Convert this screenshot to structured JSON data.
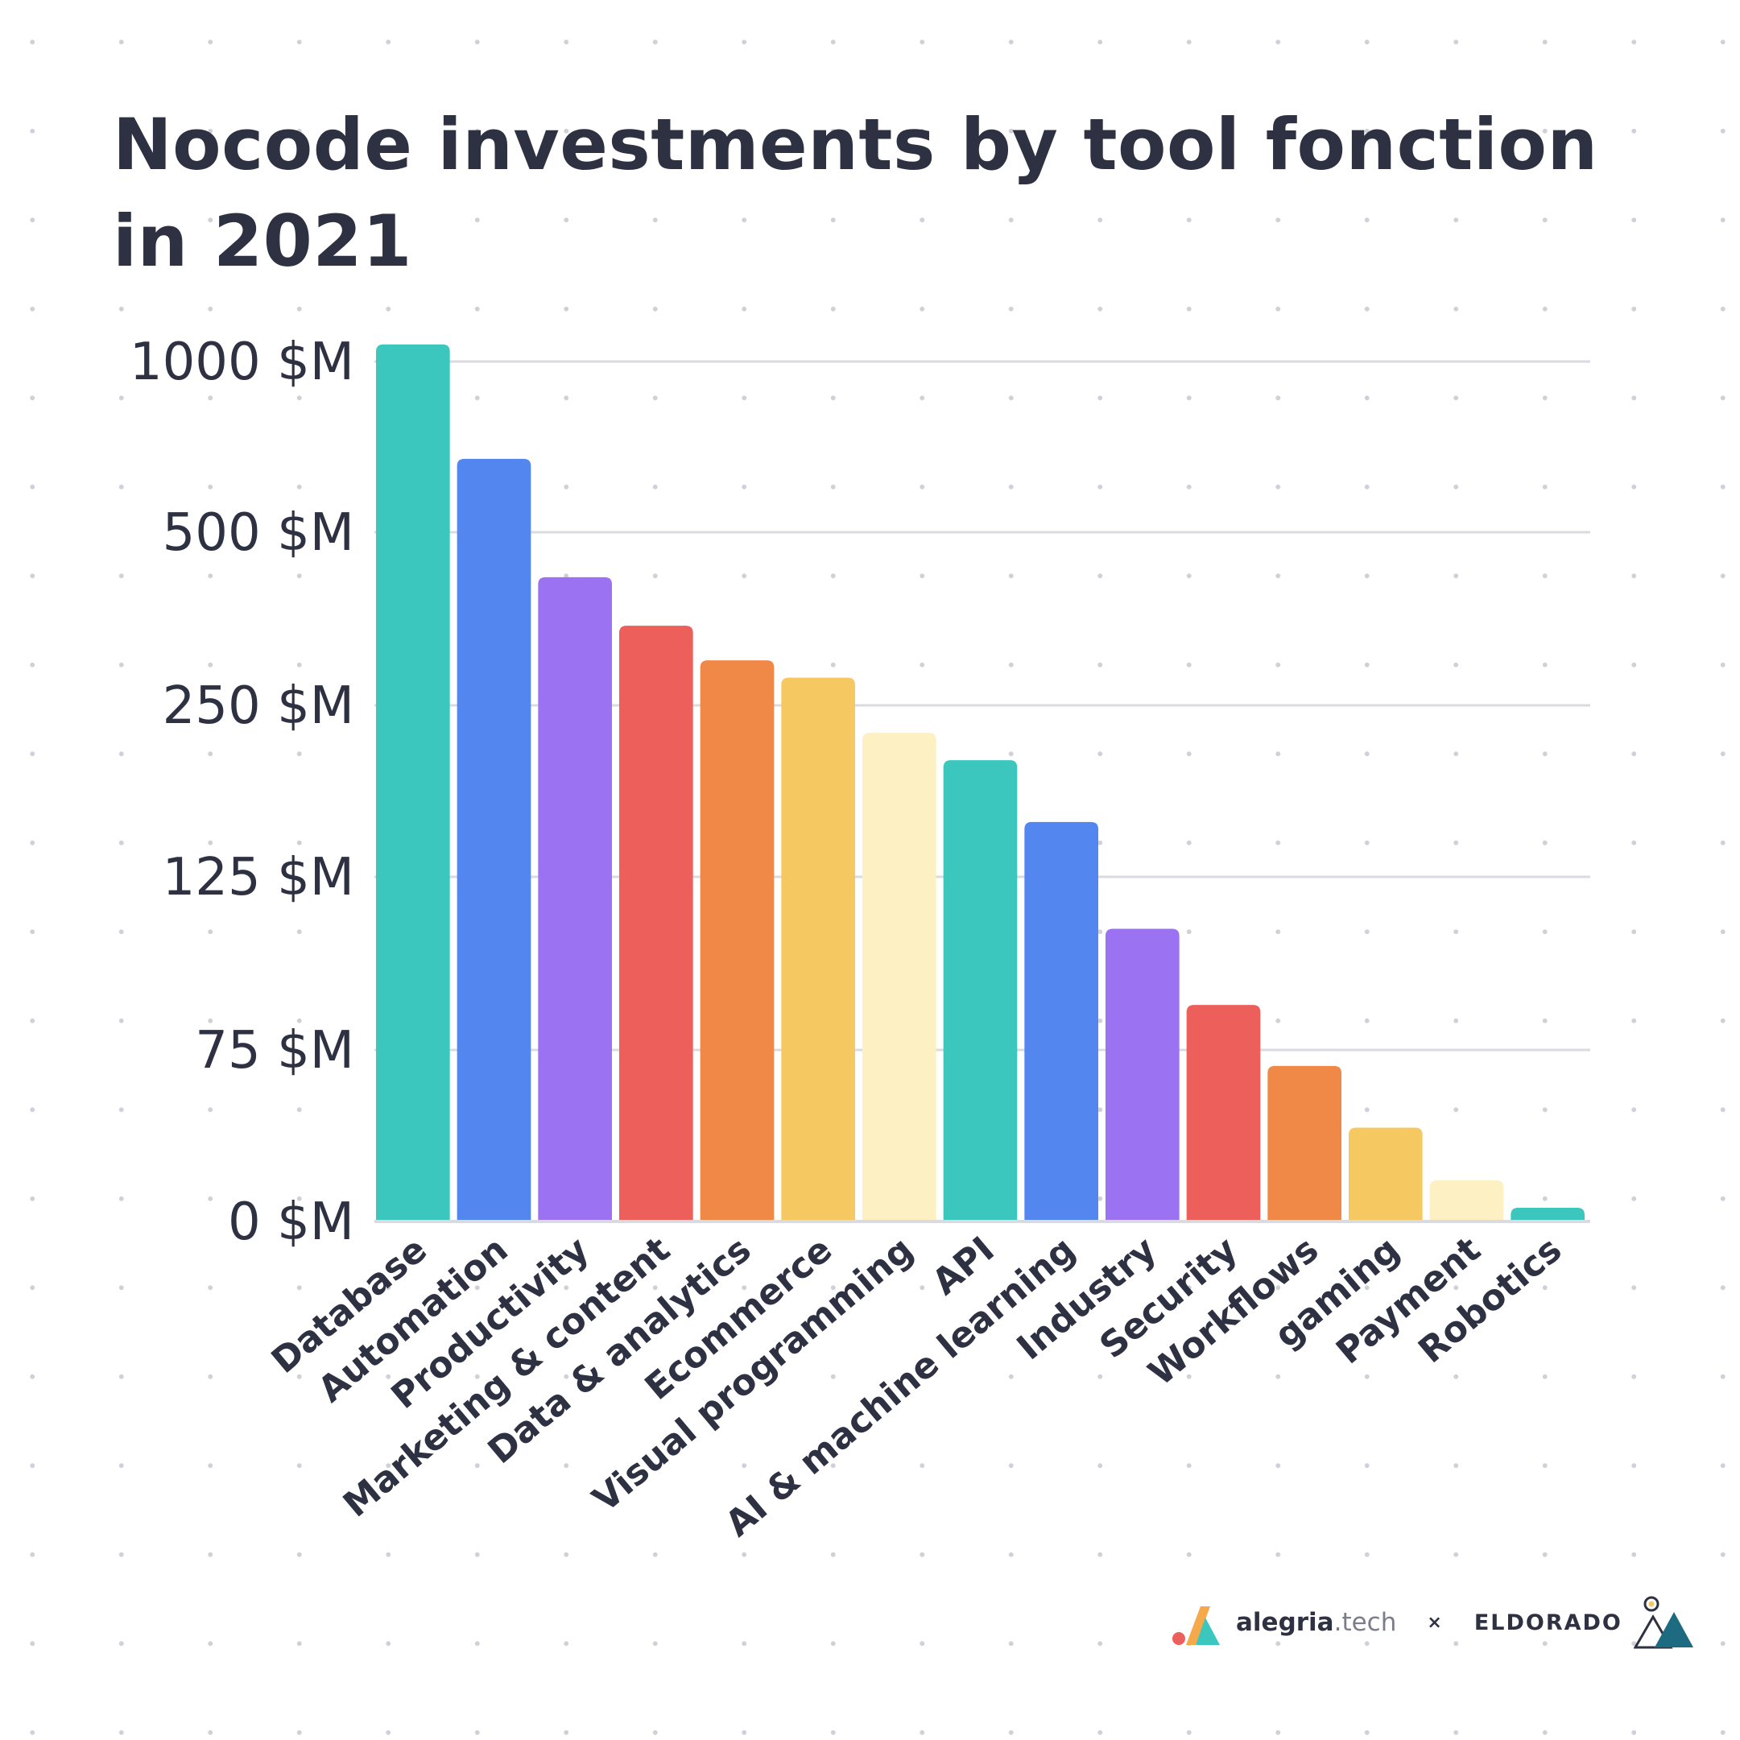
{
  "title": "Nocode investments by tool fonction in 2021",
  "colors": [
    "#3cc7be",
    "#5486f0",
    "#9a72f2",
    "#ec5f5b",
    "#f08847",
    "#f6c862",
    "#fdf1c4"
  ],
  "footer": {
    "brand_a_bold": "alegria",
    "brand_a_light": ".tech",
    "separator": "×",
    "brand_b": "ELDORADO",
    "brand_a_icon": "alegria-logo-icon",
    "brand_b_icon": "eldorado-mountain-icon"
  },
  "chart_data": {
    "type": "bar",
    "title": "Nocode investments by tool fonction in 2021",
    "xlabel": "",
    "ylabel": "",
    "grid": true,
    "y_scale": "nonlinear",
    "y_ticks": [
      0,
      75,
      125,
      250,
      500,
      1000
    ],
    "y_tick_labels": [
      "0 $M",
      "75 $M",
      "125 $M",
      "250 $M",
      "500 $M",
      "1000 $M"
    ],
    "ylim": [
      0,
      1000
    ],
    "categories": [
      "Database",
      "Automation",
      "Productivity",
      "Marketing & content",
      "Data & analytics",
      "Ecommerce",
      "Visual programming",
      "API",
      "AI & machine learning",
      "Industry",
      "Security",
      "Workflows",
      "gaming",
      "Payment",
      "Robotics"
    ],
    "values": [
      1050,
      715,
      435,
      365,
      315,
      290,
      230,
      210,
      165,
      110,
      88,
      68,
      41,
      18,
      6
    ]
  }
}
